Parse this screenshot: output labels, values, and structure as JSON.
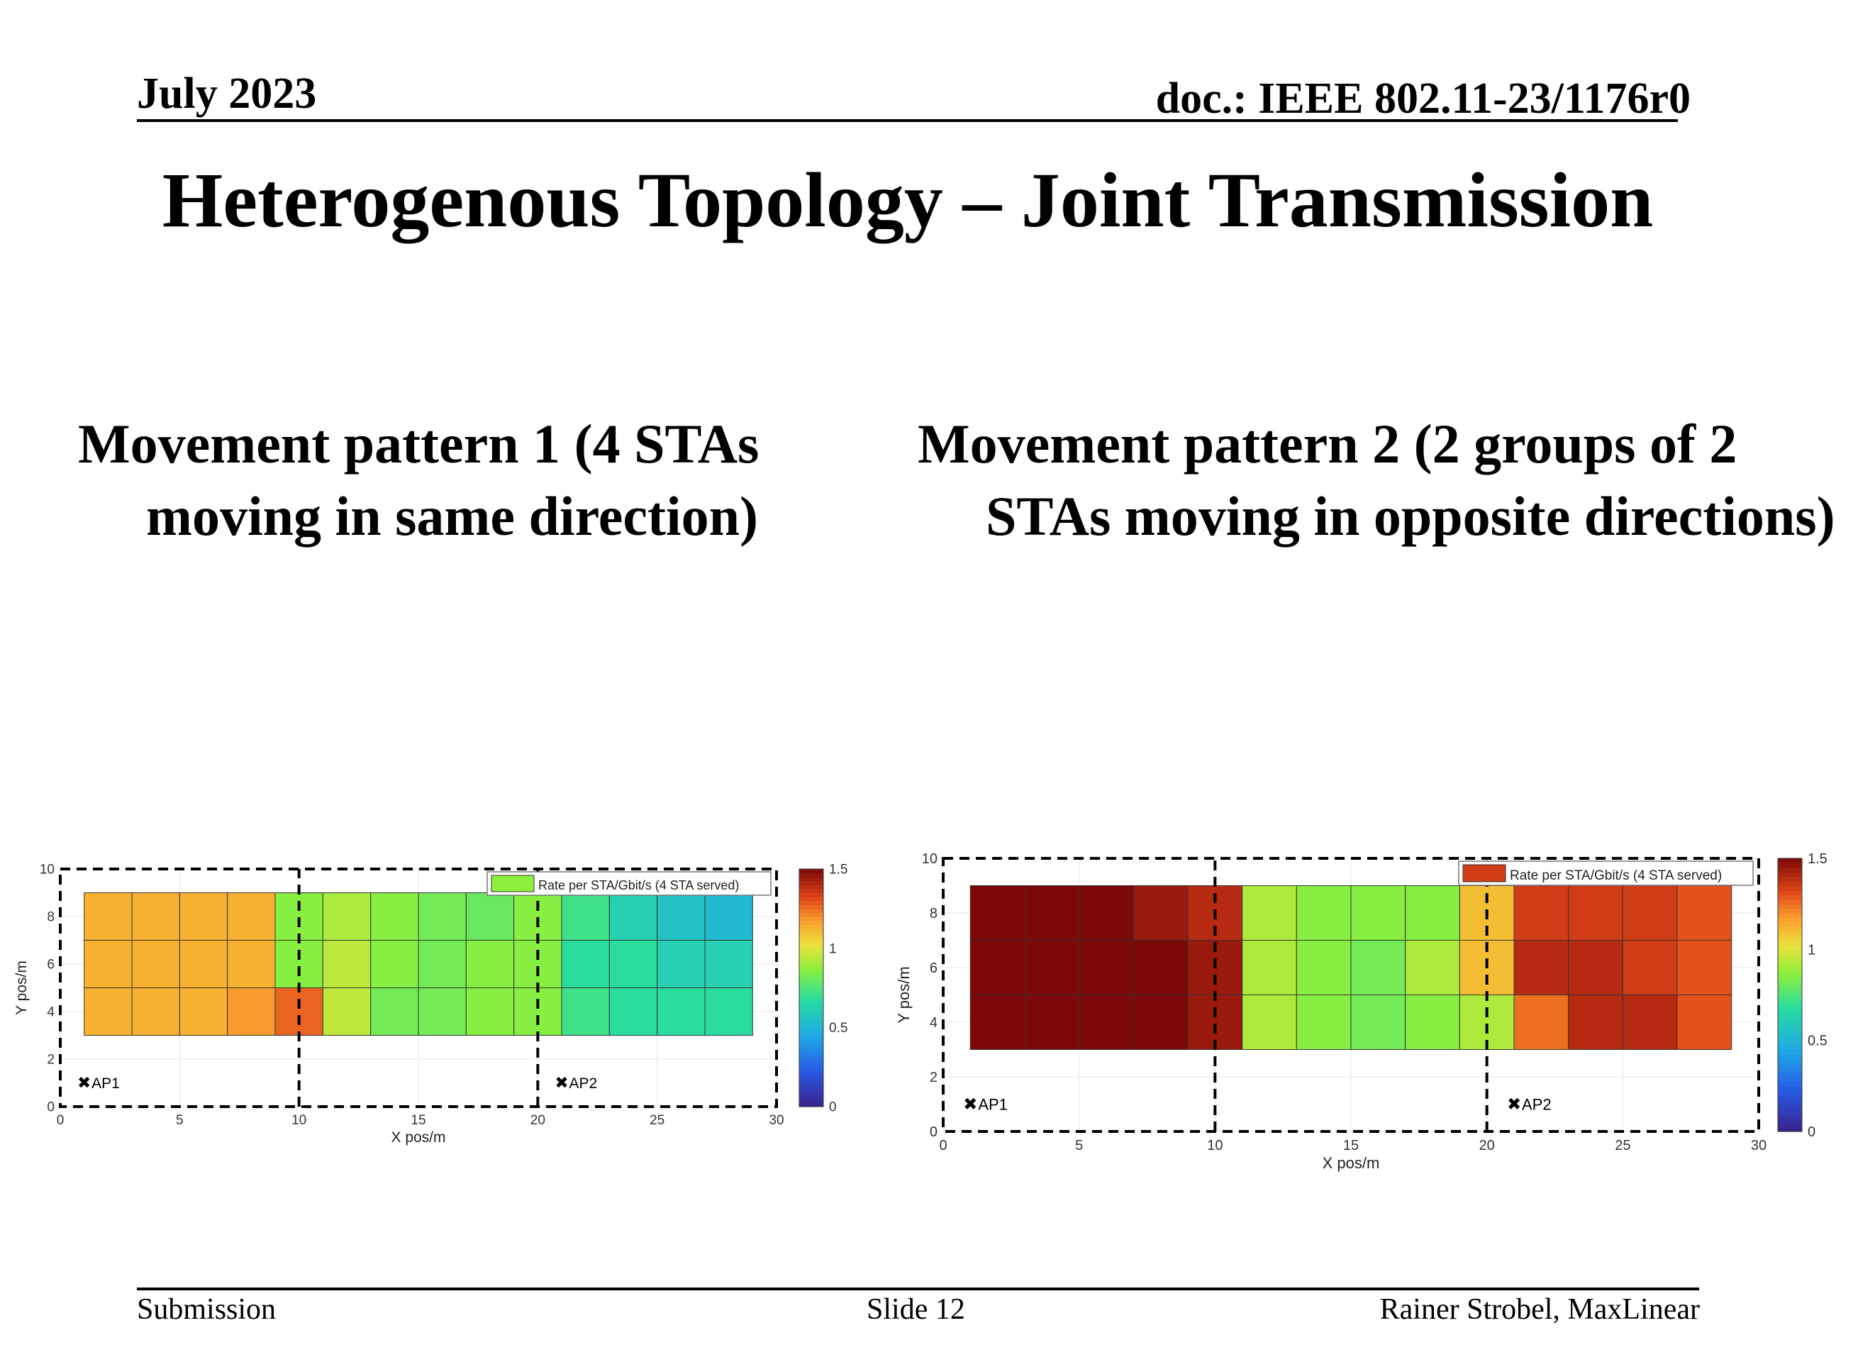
{
  "header": {
    "date": "July 2023",
    "doc": "doc.: IEEE 802.11-23/1176r0"
  },
  "title": "Heterogenous Topology – Joint Transmission",
  "columns": [
    {
      "heading": "Movement pattern 1 (4 STAs moving in same direction)"
    },
    {
      "heading": "Movement pattern 2 (2 groups of 2 STAs moving in opposite directions)"
    }
  ],
  "footer": {
    "left": "Submission",
    "center": "Slide 12",
    "right": "Rainer Strobel, MaxLinear"
  },
  "chart_data": [
    {
      "type": "heatmap",
      "xlabel": "X pos/m",
      "ylabel": "Y pos/m",
      "xlim": [
        0,
        30
      ],
      "ylim": [
        0,
        10
      ],
      "xticks": [
        "0",
        "5",
        "10",
        "15",
        "20",
        "25",
        "30"
      ],
      "yticks": [
        "0",
        "2",
        "4",
        "6",
        "8",
        "10"
      ],
      "legend": "Rate per STA/Gbit/s (4 STA served)",
      "legend_placement": "top-right",
      "colorbar": {
        "min": 0,
        "max": 1.5,
        "ticks": [
          "0",
          "0.5",
          "1",
          "1.5"
        ]
      },
      "grid": true,
      "x_edges": [
        1,
        3,
        5,
        7,
        9,
        11,
        13,
        15,
        17,
        19,
        21,
        23,
        25,
        27,
        29
      ],
      "y_edges": [
        3,
        5,
        7,
        9
      ],
      "values": [
        [
          1.13,
          1.13,
          1.13,
          1.18,
          1.27,
          0.95,
          0.82,
          0.82,
          0.86,
          0.86,
          0.72,
          0.68,
          0.68,
          0.68
        ],
        [
          1.13,
          1.13,
          1.13,
          1.13,
          0.86,
          0.95,
          0.86,
          0.82,
          0.86,
          0.86,
          0.68,
          0.68,
          0.62,
          0.62
        ],
        [
          1.13,
          1.13,
          1.13,
          1.13,
          0.86,
          0.92,
          0.86,
          0.82,
          0.8,
          0.86,
          0.72,
          0.62,
          0.56,
          0.52
        ]
      ],
      "annotations": [
        {
          "label": "AP1",
          "x": 1,
          "y": 1
        },
        {
          "label": "AP2",
          "x": 21,
          "y": 1
        }
      ],
      "boundaries_x": [
        10,
        20
      ]
    },
    {
      "type": "heatmap",
      "xlabel": "X pos/m",
      "ylabel": "Y pos/m",
      "xlim": [
        0,
        30
      ],
      "ylim": [
        0,
        10
      ],
      "xticks": [
        "0",
        "5",
        "10",
        "15",
        "20",
        "25",
        "30"
      ],
      "yticks": [
        "0",
        "2",
        "4",
        "6",
        "8",
        "10"
      ],
      "legend": "Rate per STA/Gbit/s (4 STA served)",
      "legend_placement": "top-right",
      "colorbar": {
        "min": 0,
        "max": 1.5,
        "ticks": [
          "0",
          "0.5",
          "1",
          "1.5"
        ]
      },
      "grid": true,
      "x_edges": [
        1,
        3,
        5,
        7,
        9,
        11,
        13,
        15,
        17,
        19,
        21,
        23,
        25,
        27,
        29
      ],
      "y_edges": [
        3,
        5,
        7,
        9
      ],
      "values": [
        [
          1.5,
          1.5,
          1.5,
          1.5,
          1.45,
          0.92,
          0.86,
          0.82,
          0.86,
          0.92,
          1.25,
          1.4,
          1.4,
          1.3
        ],
        [
          1.5,
          1.5,
          1.5,
          1.5,
          1.45,
          0.92,
          0.86,
          0.82,
          0.92,
          1.1,
          1.4,
          1.4,
          1.35,
          1.3
        ],
        [
          1.5,
          1.5,
          1.5,
          1.45,
          1.4,
          0.92,
          0.86,
          0.86,
          0.86,
          1.1,
          1.35,
          1.35,
          1.35,
          1.3
        ]
      ],
      "annotations": [
        {
          "label": "AP1",
          "x": 1,
          "y": 1
        },
        {
          "label": "AP2",
          "x": 21,
          "y": 1
        }
      ],
      "boundaries_x": [
        10,
        20
      ]
    }
  ]
}
